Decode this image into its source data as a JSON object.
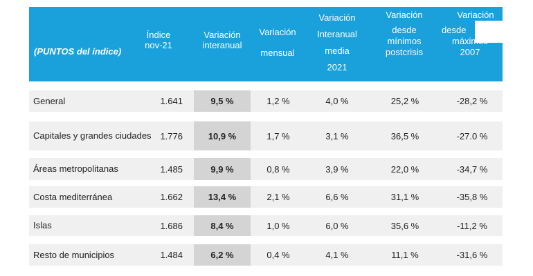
{
  "header": {
    "row_label": "(PUNTOS del índice)",
    "columns": [
      [
        "Índice",
        "nov-21"
      ],
      [
        "Variación",
        "interanual"
      ],
      [
        "Variación",
        "mensual"
      ],
      [
        "Variación",
        "Interanual",
        "media",
        "2021"
      ],
      [
        "Variación",
        "desde",
        "mínimos",
        "postcrisis"
      ],
      [
        "Variación",
        "desde",
        "máximos",
        "2007"
      ]
    ]
  },
  "rows": [
    {
      "name": "General",
      "indice": "1.641",
      "interanual": "9,5 %",
      "mensual": "1,2 %",
      "media": "4,0 %",
      "minimos": "25,2 %",
      "maximos": "-28,2 %"
    },
    {
      "name": "Capitales y grandes ciudades",
      "indice": "1.776",
      "interanual": "10,9 %",
      "mensual": "1,7 %",
      "media": "3,1 %",
      "minimos": "36,5 %",
      "maximos": "-27.0 %"
    },
    {
      "name": "Áreas metropolitanas",
      "indice": "1.485",
      "interanual": "9,9 %",
      "mensual": "0,8 %",
      "media": "3,9 %",
      "minimos": "22,0 %",
      "maximos": "-34,7 %"
    },
    {
      "name": "Costa mediterránea",
      "indice": "1.662",
      "interanual": "13,4 %",
      "mensual": "2,1 %",
      "media": "6,6 %",
      "minimos": "31,1 %",
      "maximos": "-35,8 %"
    },
    {
      "name": "Islas",
      "indice": "1.686",
      "interanual": "8,4 %",
      "mensual": "1,0 %",
      "media": "6,0 %",
      "minimos": "35,6 %",
      "maximos": "-11,2 %"
    },
    {
      "name": "Resto de municipios",
      "indice": "1.484",
      "interanual": "6,2 %",
      "mensual": "0,4 %",
      "media": "4,1 %",
      "minimos": "11,1 %",
      "maximos": "-31,6 %"
    }
  ],
  "colors": {
    "header_bg": "#1aa0da",
    "row_bg": "#f0f0f0",
    "highlight_bg": "#d4d4d4"
  }
}
